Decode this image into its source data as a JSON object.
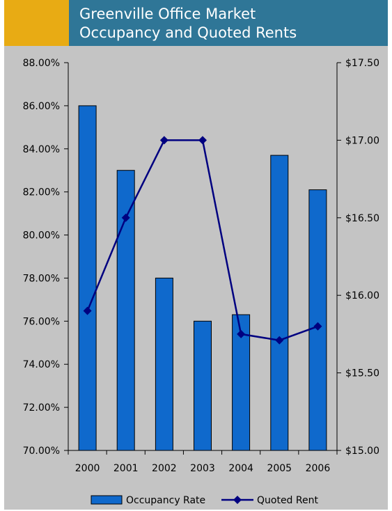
{
  "header": {
    "title_line1": "Greenville Office Market",
    "title_line2": "Occupancy and Quoted Rents"
  },
  "colors": {
    "accent": "#e8ab14",
    "title_band": "#2f7697",
    "plot_background": "#c4c4c4",
    "bar_fill": "#0f69cc",
    "line_color": "#000080"
  },
  "chart_data": {
    "type": "bar",
    "title": "Greenville Office Market Occupancy and Quoted Rents",
    "categories": [
      "2000",
      "2001",
      "2002",
      "2003",
      "2004",
      "2005",
      "2006"
    ],
    "series": [
      {
        "name": "Occupancy Rate",
        "type": "bar",
        "axis": "left",
        "values": [
          0.86,
          0.83,
          0.78,
          0.76,
          0.763,
          0.837,
          0.821
        ]
      },
      {
        "name": "Quoted Rent",
        "type": "line",
        "axis": "right",
        "marker": "diamond",
        "values": [
          15.9,
          16.5,
          17.0,
          17.0,
          15.75,
          15.71,
          15.8
        ]
      }
    ],
    "y_left": {
      "ylim": [
        0.7,
        0.88
      ],
      "ticks": [
        0.88,
        0.86,
        0.84,
        0.82,
        0.8,
        0.78,
        0.76,
        0.74,
        0.72,
        0.7
      ],
      "tick_labels": [
        "88.00%",
        "86.00%",
        "84.00%",
        "82.00%",
        "80.00%",
        "78.00%",
        "76.00%",
        "74.00%",
        "72.00%",
        "70.00%"
      ]
    },
    "y_right": {
      "ylim": [
        15.0,
        17.5
      ],
      "ticks": [
        17.5,
        17.0,
        16.5,
        16.0,
        15.5,
        15.0
      ],
      "tick_labels": [
        "$17.50",
        "$17.00",
        "$16.50",
        "$16.00",
        "$15.50",
        "$15.00"
      ]
    },
    "grid": false,
    "legend": {
      "position": "bottom",
      "entries": [
        "Occupancy Rate",
        "Quoted Rent"
      ]
    }
  }
}
